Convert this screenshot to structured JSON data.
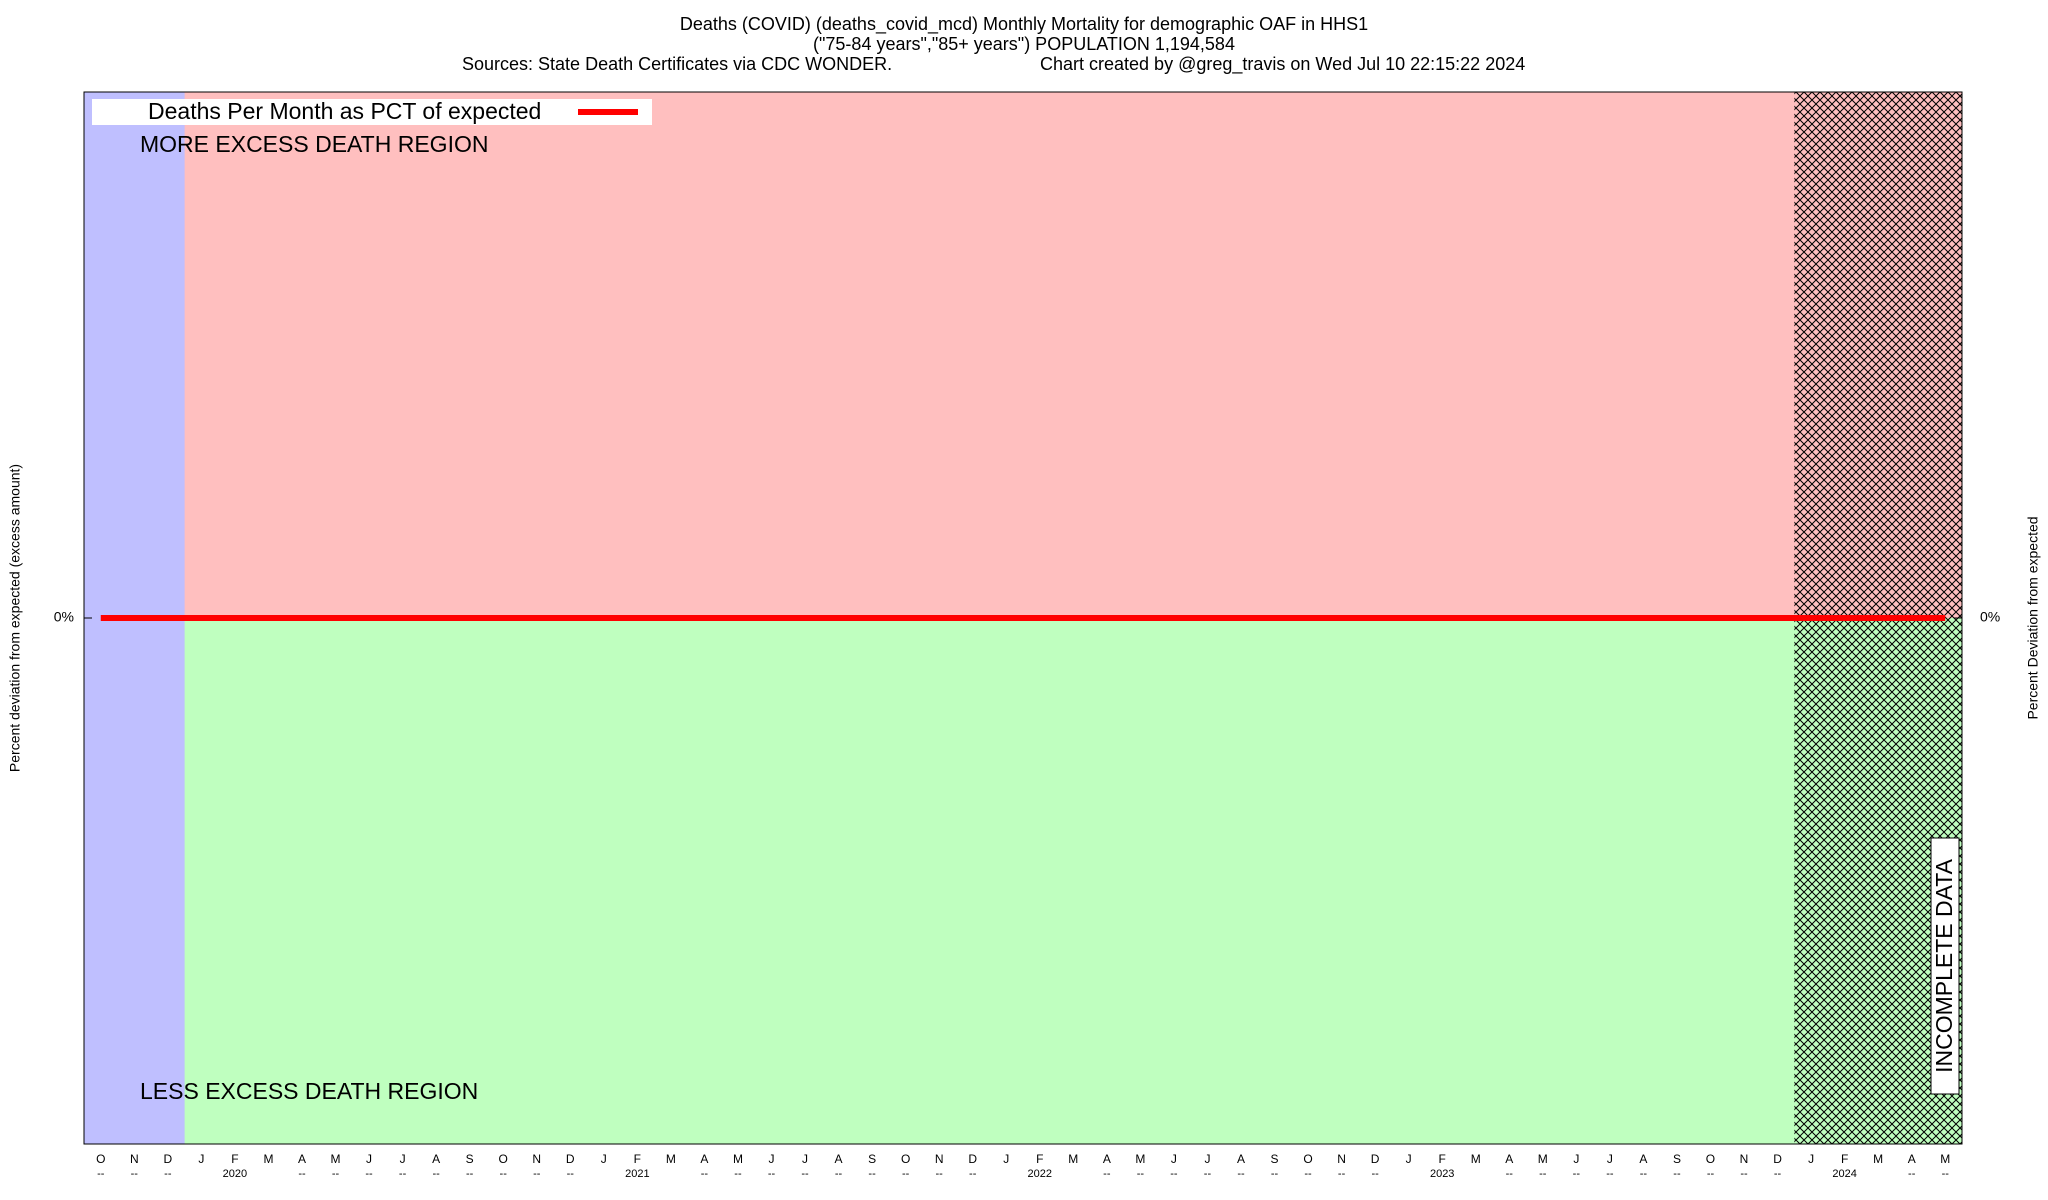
{
  "chart_data": {
    "type": "line",
    "title": "Deaths (COVID) (deaths_covid_mcd) Monthly Mortality for demographic OAF in HHS1",
    "subtitle": "(\"75-84 years\",\"85+ years\") POPULATION 1,194,584",
    "source": "Sources: State Death Certificates via CDC WONDER.",
    "credit": "Chart created by @greg_travis on Wed Jul 10 22:15:22 2024",
    "y_label": "Percent deviation from expected (excess amount)",
    "y2_label": "Percent Deviation from expected",
    "annotations": [
      "MORE EXCESS DEATH REGION",
      "LESS EXCESS DEATH REGION",
      "INCOMPLETE DATA"
    ],
    "categories": [
      "O",
      "N",
      "D",
      "J",
      "F",
      "M",
      "A",
      "M",
      "J",
      "J",
      "A",
      "S",
      "O",
      "N",
      "D",
      "J",
      "F",
      "M",
      "A",
      "M",
      "J",
      "J",
      "A",
      "S",
      "O",
      "N",
      "D",
      "J",
      "F",
      "M",
      "A",
      "M",
      "J",
      "J",
      "A",
      "S",
      "O",
      "N",
      "D",
      "J",
      "F",
      "M",
      "A",
      "M",
      "J",
      "J",
      "A",
      "S",
      "O",
      "N",
      "D",
      "J",
      "F",
      "M",
      "A",
      "M"
    ],
    "x_sublabels": [
      "--",
      "--",
      "--",
      null,
      "2020",
      null,
      "--",
      "--",
      "--",
      "--",
      "--",
      "--",
      "--",
      "--",
      "--",
      null,
      "2021",
      null,
      "--",
      "--",
      "--",
      "--",
      "--",
      "--",
      "--",
      "--",
      "--",
      null,
      "2022",
      null,
      "--",
      "--",
      "--",
      "--",
      "--",
      "--",
      "--",
      "--",
      "--",
      null,
      "2023",
      null,
      "--",
      "--",
      "--",
      "--",
      "--",
      "--",
      "--",
      "--",
      "--",
      null,
      "2024",
      null,
      "--",
      "--"
    ],
    "series": [
      {
        "name": "Deaths Per Month as PCT of expected",
        "color": "#ff0000",
        "values": [
          0,
          0,
          0,
          0,
          0,
          0,
          0,
          0,
          0,
          0,
          0,
          0,
          0,
          0,
          0,
          0,
          0,
          0,
          0,
          0,
          0,
          0,
          0,
          0,
          0,
          0,
          0,
          0,
          0,
          0,
          0,
          0,
          0,
          0,
          0,
          0,
          0,
          0,
          0,
          0,
          0,
          0,
          0,
          0,
          0,
          0,
          0,
          0,
          0,
          0,
          0,
          0,
          0,
          0,
          0,
          0
        ]
      }
    ],
    "ylim": [
      -100,
      100
    ],
    "yticks": [
      {
        "value": 0,
        "label": "0%"
      }
    ],
    "y2lim": [
      -100,
      100
    ],
    "y2ticks": [
      {
        "value": 0,
        "label": "0%"
      }
    ],
    "legend": "top-left"
  }
}
